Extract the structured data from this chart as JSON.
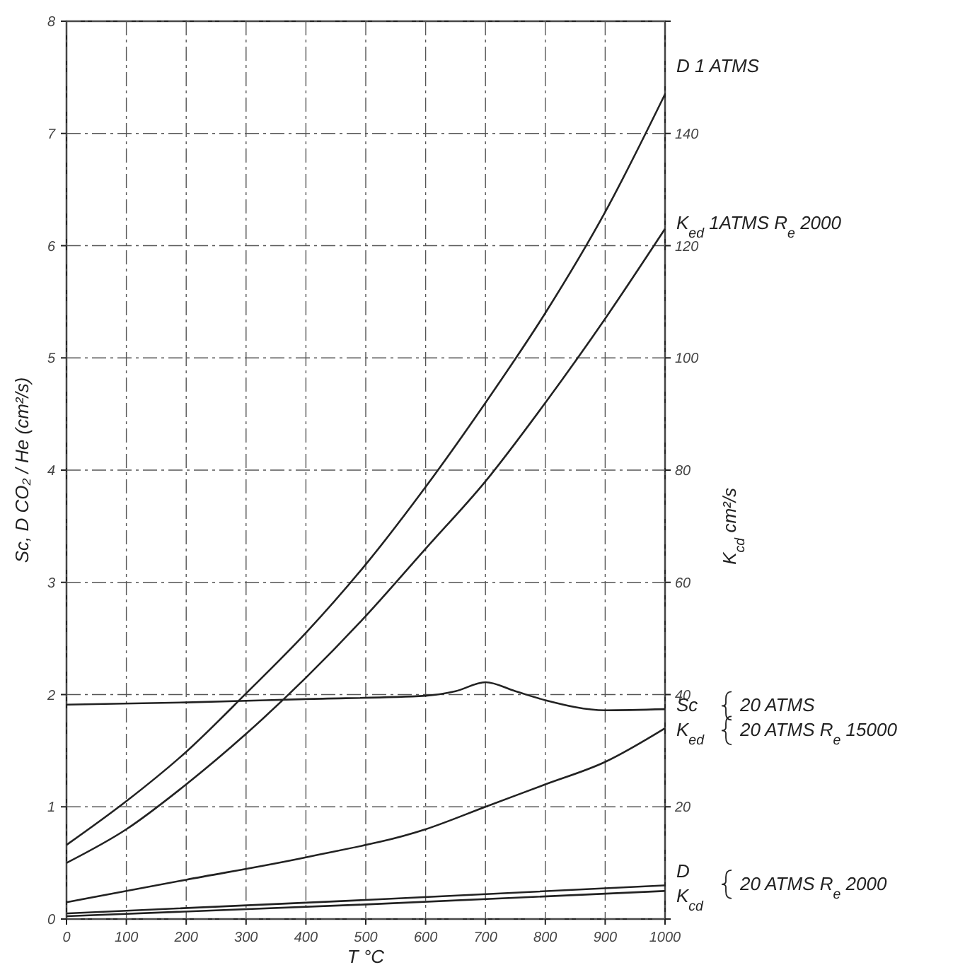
{
  "chart_data": {
    "type": "line",
    "xlabel": "T °C",
    "ylabel": "Sc,   D CO₂ / He (cm²/s)",
    "y2label": "K$_{cd}$   cm²/s",
    "x": [
      0,
      100,
      200,
      300,
      400,
      500,
      600,
      700,
      800,
      900,
      1000
    ],
    "xlim": [
      0,
      1000
    ],
    "xticks": [
      0,
      100,
      200,
      300,
      400,
      500,
      600,
      700,
      800,
      900,
      1000
    ],
    "ylim": [
      0,
      8
    ],
    "yticks": [
      0,
      1,
      2,
      3,
      4,
      5,
      6,
      7,
      8
    ],
    "y2lim": [
      0,
      160
    ],
    "y2ticks": [
      {
        "value": 0,
        "label": null
      },
      20,
      40,
      60,
      80,
      100,
      120,
      140,
      {
        "value": 160,
        "label": null
      }
    ],
    "grid": true,
    "series": [
      {
        "color": "#222222",
        "values": [
          0.66,
          1.05,
          1.49,
          2.01,
          2.55,
          3.16,
          3.85,
          4.6,
          5.4,
          6.3,
          7.35
        ]
      },
      {
        "color": "#222222",
        "axis": "y2",
        "values": [
          10,
          16,
          24,
          33,
          43,
          54,
          66,
          78,
          92,
          107,
          123
        ]
      },
      {
        "color": "#222222",
        "x": [
          0,
          200,
          400,
          600,
          650,
          700,
          750,
          800,
          900,
          1000
        ],
        "values": [
          1.91,
          1.93,
          1.96,
          1.99,
          2.03,
          2.11,
          2.03,
          1.95,
          1.86,
          1.87
        ]
      },
      {
        "color": "#222222",
        "axis": "y2",
        "x": [
          0,
          200,
          400,
          600,
          700,
          800,
          900,
          1000
        ],
        "values": [
          3,
          7,
          11,
          16,
          20,
          24,
          28,
          34
        ]
      },
      {
        "color": "#222222",
        "x": [
          0,
          500,
          1000
        ],
        "values": [
          0.05,
          0.17,
          0.3
        ]
      },
      {
        "color": "#222222",
        "axis": "y2",
        "x": [
          0,
          500,
          1000
        ],
        "values": [
          0.5,
          2.6,
          5
        ]
      }
    ],
    "annotations": [
      "D   1 ATMS",
      "K$_{ed}$  1ATMS  R$_{e}$ 2000",
      "Sc",
      "20 ATMS",
      "K$_{ed}$",
      "20 ATMS  R$_{e}$ 15000",
      "D",
      "K$_{cd}$",
      "20 ATMS  R$_{e}$ 2000"
    ]
  }
}
